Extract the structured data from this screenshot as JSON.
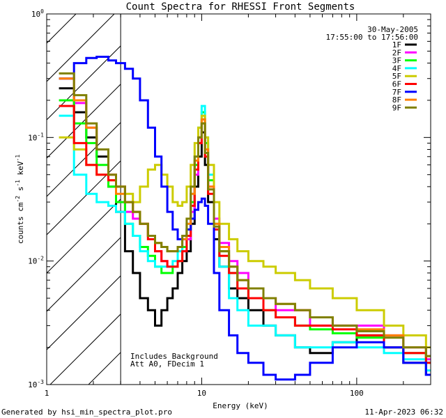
{
  "chart_data": {
    "type": "line",
    "title": "Count Spectra for RHESSI Front Segments",
    "xlabel": "Energy (keV)",
    "ylabel_main": "counts cm",
    "ylabel_parts": [
      "counts cm",
      "-2",
      " s",
      "-1",
      " keV",
      "-1"
    ],
    "xscale": "log",
    "yscale": "log",
    "xlim": [
      1,
      300
    ],
    "ylim": [
      0.001,
      1
    ],
    "x_ticks": [
      {
        "value": 1,
        "label": "1"
      },
      {
        "value": 10,
        "label": "10"
      },
      {
        "value": 100,
        "label": "100"
      }
    ],
    "y_ticks": [
      {
        "value": 0.001,
        "base": "10",
        "exp": "-3"
      },
      {
        "value": 0.01,
        "base": "10",
        "exp": "-2"
      },
      {
        "value": 0.1,
        "base": "10",
        "exp": "-1"
      },
      {
        "value": 1,
        "base": "10",
        "exp": "0"
      }
    ],
    "date": "30-May-2005",
    "time_range": "17:55:00 to 17:56:00",
    "annotations": [
      "Includes Background",
      "Att A0, FDecim 1"
    ],
    "hatched_region_max_kev": 3,
    "series": [
      {
        "name": "1F",
        "color": "#000000",
        "x": [
          1.2,
          1.5,
          1.8,
          2.1,
          2.5,
          2.8,
          3.2,
          3.6,
          4.0,
          4.5,
          5.0,
          5.5,
          6.0,
          6.5,
          7.0,
          7.5,
          8.0,
          8.5,
          9.0,
          9.5,
          10.0,
          10.5,
          11.0,
          12,
          13,
          15,
          17,
          20,
          25,
          30,
          40,
          50,
          70,
          100,
          150,
          200,
          280
        ],
        "y": [
          0.25,
          0.16,
          0.1,
          0.07,
          0.04,
          0.025,
          0.012,
          0.008,
          0.005,
          0.004,
          0.003,
          0.004,
          0.005,
          0.006,
          0.008,
          0.01,
          0.012,
          0.02,
          0.04,
          0.07,
          0.11,
          0.06,
          0.03,
          0.015,
          0.009,
          0.006,
          0.005,
          0.004,
          0.003,
          0.0025,
          0.002,
          0.0018,
          0.0022,
          0.0025,
          0.002,
          0.0015,
          0.0012
        ]
      },
      {
        "name": "2F",
        "color": "#ff00ff",
        "x": [
          1.2,
          1.5,
          1.8,
          2.1,
          2.5,
          2.8,
          3.2,
          3.6,
          4.0,
          4.5,
          5.0,
          5.5,
          6.0,
          6.5,
          7.0,
          7.5,
          8.0,
          8.5,
          9.0,
          9.5,
          10.0,
          10.5,
          11.0,
          12,
          13,
          15,
          17,
          20,
          25,
          30,
          40,
          50,
          70,
          100,
          150,
          200,
          280
        ],
        "y": [
          0.3,
          0.19,
          0.12,
          0.08,
          0.05,
          0.03,
          0.025,
          0.022,
          0.02,
          0.016,
          0.012,
          0.01,
          0.009,
          0.009,
          0.01,
          0.012,
          0.015,
          0.025,
          0.05,
          0.09,
          0.14,
          0.08,
          0.04,
          0.022,
          0.014,
          0.01,
          0.008,
          0.006,
          0.005,
          0.004,
          0.004,
          0.003,
          0.003,
          0.003,
          0.0025,
          0.002,
          0.0016
        ]
      },
      {
        "name": "3F",
        "color": "#00ff00",
        "x": [
          1.2,
          1.5,
          1.8,
          2.1,
          2.5,
          2.8,
          3.2,
          3.6,
          4.0,
          4.5,
          5.0,
          5.5,
          6.0,
          6.5,
          7.0,
          7.5,
          8.0,
          8.5,
          9.0,
          9.5,
          10.0,
          10.5,
          11.0,
          12,
          13,
          15,
          17,
          20,
          25,
          30,
          40,
          50,
          70,
          100,
          150,
          200,
          280
        ],
        "y": [
          0.2,
          0.13,
          0.09,
          0.06,
          0.04,
          0.03,
          0.02,
          0.016,
          0.013,
          0.011,
          0.009,
          0.008,
          0.008,
          0.009,
          0.01,
          0.013,
          0.018,
          0.03,
          0.06,
          0.1,
          0.16,
          0.09,
          0.045,
          0.02,
          0.012,
          0.008,
          0.006,
          0.005,
          0.004,
          0.0035,
          0.003,
          0.0028,
          0.0026,
          0.0024,
          0.002,
          0.0018,
          0.0015
        ]
      },
      {
        "name": "4F",
        "color": "#00ffff",
        "x": [
          1.2,
          1.5,
          1.8,
          2.1,
          2.5,
          2.8,
          3.2,
          3.6,
          4.0,
          4.5,
          5.0,
          5.5,
          6.0,
          6.5,
          7.0,
          7.5,
          8.0,
          8.5,
          9.0,
          9.5,
          10.0,
          10.5,
          11.0,
          12,
          13,
          15,
          17,
          20,
          25,
          30,
          40,
          50,
          70,
          100,
          150,
          200,
          280
        ],
        "y": [
          0.15,
          0.05,
          0.035,
          0.03,
          0.028,
          0.025,
          0.02,
          0.016,
          0.012,
          0.01,
          0.009,
          0.009,
          0.009,
          0.01,
          0.012,
          0.015,
          0.02,
          0.035,
          0.07,
          0.12,
          0.18,
          0.1,
          0.05,
          0.018,
          0.009,
          0.005,
          0.004,
          0.003,
          0.003,
          0.0025,
          0.002,
          0.002,
          0.0022,
          0.002,
          0.0018,
          0.0016,
          0.0013
        ]
      },
      {
        "name": "5F",
        "color": "#cccc00",
        "x": [
          1.2,
          1.5,
          1.8,
          2.1,
          2.5,
          2.8,
          3.2,
          3.6,
          4.0,
          4.5,
          5.0,
          5.5,
          6.0,
          6.5,
          7.0,
          7.5,
          8.0,
          8.5,
          9.0,
          9.5,
          10.0,
          10.5,
          11.0,
          12,
          13,
          15,
          17,
          20,
          25,
          30,
          40,
          50,
          70,
          100,
          150,
          200,
          280
        ],
        "y": [
          0.1,
          0.08,
          0.06,
          0.05,
          0.045,
          0.04,
          0.035,
          0.03,
          0.04,
          0.055,
          0.06,
          0.05,
          0.04,
          0.03,
          0.028,
          0.03,
          0.04,
          0.06,
          0.09,
          0.12,
          0.15,
          0.1,
          0.06,
          0.03,
          0.02,
          0.015,
          0.012,
          0.01,
          0.009,
          0.008,
          0.007,
          0.006,
          0.005,
          0.004,
          0.003,
          0.0025,
          0.002
        ]
      },
      {
        "name": "6F",
        "color": "#ff0000",
        "x": [
          1.2,
          1.5,
          1.8,
          2.1,
          2.5,
          2.8,
          3.2,
          3.6,
          4.0,
          4.5,
          5.0,
          5.5,
          6.0,
          6.5,
          7.0,
          7.5,
          8.0,
          8.5,
          9.0,
          9.5,
          10.0,
          10.5,
          11.0,
          12,
          13,
          15,
          17,
          20,
          25,
          30,
          40,
          50,
          70,
          100,
          150,
          200,
          280
        ],
        "y": [
          0.18,
          0.09,
          0.06,
          0.05,
          0.045,
          0.04,
          0.03,
          0.025,
          0.02,
          0.015,
          0.012,
          0.01,
          0.009,
          0.009,
          0.01,
          0.012,
          0.016,
          0.028,
          0.055,
          0.09,
          0.13,
          0.07,
          0.035,
          0.018,
          0.011,
          0.008,
          0.006,
          0.005,
          0.004,
          0.0035,
          0.003,
          0.003,
          0.0028,
          0.0025,
          0.002,
          0.0018,
          0.0015
        ]
      },
      {
        "name": "7F",
        "color": "#0000ff",
        "x": [
          1.2,
          1.5,
          1.8,
          2.1,
          2.5,
          2.8,
          3.2,
          3.6,
          4.0,
          4.5,
          5.0,
          5.5,
          6.0,
          6.5,
          7.0,
          7.5,
          8.0,
          8.5,
          9.0,
          9.5,
          10.0,
          10.5,
          11.0,
          12,
          13,
          15,
          17,
          20,
          25,
          30,
          40,
          50,
          70,
          100,
          150,
          200,
          280
        ],
        "y": [
          0.3,
          0.4,
          0.44,
          0.45,
          0.42,
          0.4,
          0.36,
          0.3,
          0.2,
          0.12,
          0.07,
          0.04,
          0.025,
          0.018,
          0.015,
          0.015,
          0.018,
          0.022,
          0.026,
          0.03,
          0.032,
          0.028,
          0.02,
          0.008,
          0.004,
          0.0025,
          0.0018,
          0.0015,
          0.0012,
          0.0011,
          0.0012,
          0.0015,
          0.002,
          0.0022,
          0.002,
          0.0015,
          0.0012
        ]
      },
      {
        "name": "8F",
        "color": "#ff8000",
        "x": [
          1.2,
          1.5,
          1.8,
          2.1,
          2.5,
          2.8,
          3.2,
          3.6,
          4.0,
          4.5,
          5.0,
          5.5,
          6.0,
          6.5,
          7.0,
          7.5,
          8.0,
          8.5,
          9.0,
          9.5,
          10.0,
          10.5,
          11.0,
          12,
          13,
          15,
          17,
          20,
          25,
          30,
          40,
          50,
          70,
          100,
          150,
          200,
          280
        ],
        "y": [
          0.3,
          0.2,
          0.12,
          0.08,
          0.05,
          0.035,
          0.03,
          0.025,
          0.02,
          0.016,
          0.014,
          0.013,
          0.012,
          0.012,
          0.013,
          0.015,
          0.02,
          0.035,
          0.065,
          0.1,
          0.14,
          0.08,
          0.04,
          0.02,
          0.013,
          0.009,
          0.007,
          0.006,
          0.005,
          0.0045,
          0.004,
          0.0035,
          0.003,
          0.0028,
          0.0025,
          0.002,
          0.0017
        ]
      },
      {
        "name": "9F",
        "color": "#808000",
        "x": [
          1.2,
          1.5,
          1.8,
          2.1,
          2.5,
          2.8,
          3.2,
          3.6,
          4.0,
          4.5,
          5.0,
          5.5,
          6.0,
          6.5,
          7.0,
          7.5,
          8.0,
          8.5,
          9.0,
          9.5,
          10.0,
          10.5,
          11.0,
          12,
          13,
          15,
          17,
          20,
          25,
          30,
          40,
          50,
          70,
          100,
          150,
          200,
          280
        ],
        "y": [
          0.33,
          0.22,
          0.13,
          0.08,
          0.05,
          0.04,
          0.03,
          0.025,
          0.02,
          0.016,
          0.014,
          0.013,
          0.012,
          0.012,
          0.013,
          0.016,
          0.022,
          0.04,
          0.07,
          0.1,
          0.13,
          0.075,
          0.038,
          0.019,
          0.012,
          0.009,
          0.007,
          0.006,
          0.005,
          0.0045,
          0.004,
          0.0035,
          0.003,
          0.0027,
          0.0024,
          0.002,
          0.0017
        ]
      }
    ]
  },
  "footer": {
    "generated_by": "Generated by hsi_min_spectra_plot.pro",
    "timestamp": "11-Apr-2023 06:32"
  }
}
